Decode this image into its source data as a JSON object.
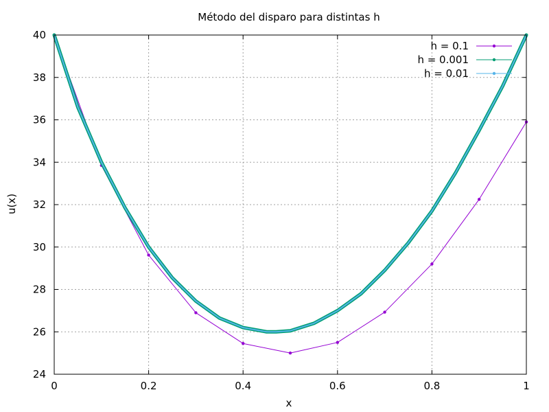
{
  "chart_data": {
    "type": "line",
    "title": "Método del disparo para distintas h",
    "xlabel": "x",
    "ylabel": "u(x)",
    "xlim": [
      0,
      1
    ],
    "ylim": [
      24,
      40
    ],
    "x_ticks": [
      "0",
      "0.2",
      "0.4",
      "0.6",
      "0.8",
      "1"
    ],
    "y_ticks": [
      "24",
      "26",
      "28",
      "30",
      "32",
      "34",
      "36",
      "38",
      "40"
    ],
    "grid": true,
    "legend_position": "top-right",
    "series": [
      {
        "name": "h = 0.1",
        "color": "#9400d3",
        "x": [
          0,
          0.1,
          0.2,
          0.3,
          0.4,
          0.5,
          0.6,
          0.7,
          0.8,
          0.9,
          1.0
        ],
        "y": [
          40,
          33.85,
          29.62,
          26.9,
          25.45,
          25.0,
          25.5,
          26.93,
          29.2,
          32.25,
          35.9
        ]
      },
      {
        "name": "h = 0.001",
        "color": "#009e73",
        "x": [
          0,
          0.05,
          0.1,
          0.15,
          0.2,
          0.25,
          0.3,
          0.35,
          0.4,
          0.45,
          0.47,
          0.5,
          0.55,
          0.6,
          0.65,
          0.7,
          0.75,
          0.8,
          0.85,
          0.9,
          0.95,
          1.0
        ],
        "y": [
          40,
          36.6,
          34.0,
          31.85,
          30.0,
          28.55,
          27.45,
          26.65,
          26.2,
          26.0,
          26.0,
          26.05,
          26.4,
          27.0,
          27.8,
          28.9,
          30.2,
          31.7,
          33.5,
          35.5,
          37.6,
          40.0
        ]
      },
      {
        "name": "h = 0.01",
        "color": "#56b4e9",
        "x": [
          0,
          0.05,
          0.1,
          0.15,
          0.2,
          0.25,
          0.3,
          0.35,
          0.4,
          0.45,
          0.47,
          0.5,
          0.55,
          0.6,
          0.65,
          0.7,
          0.75,
          0.8,
          0.85,
          0.9,
          0.95,
          1.0
        ],
        "y": [
          40,
          36.6,
          34.0,
          31.85,
          30.0,
          28.55,
          27.45,
          26.65,
          26.2,
          26.0,
          26.0,
          26.05,
          26.4,
          27.0,
          27.8,
          28.9,
          30.2,
          31.7,
          33.5,
          35.5,
          37.6,
          40.0
        ]
      }
    ]
  }
}
